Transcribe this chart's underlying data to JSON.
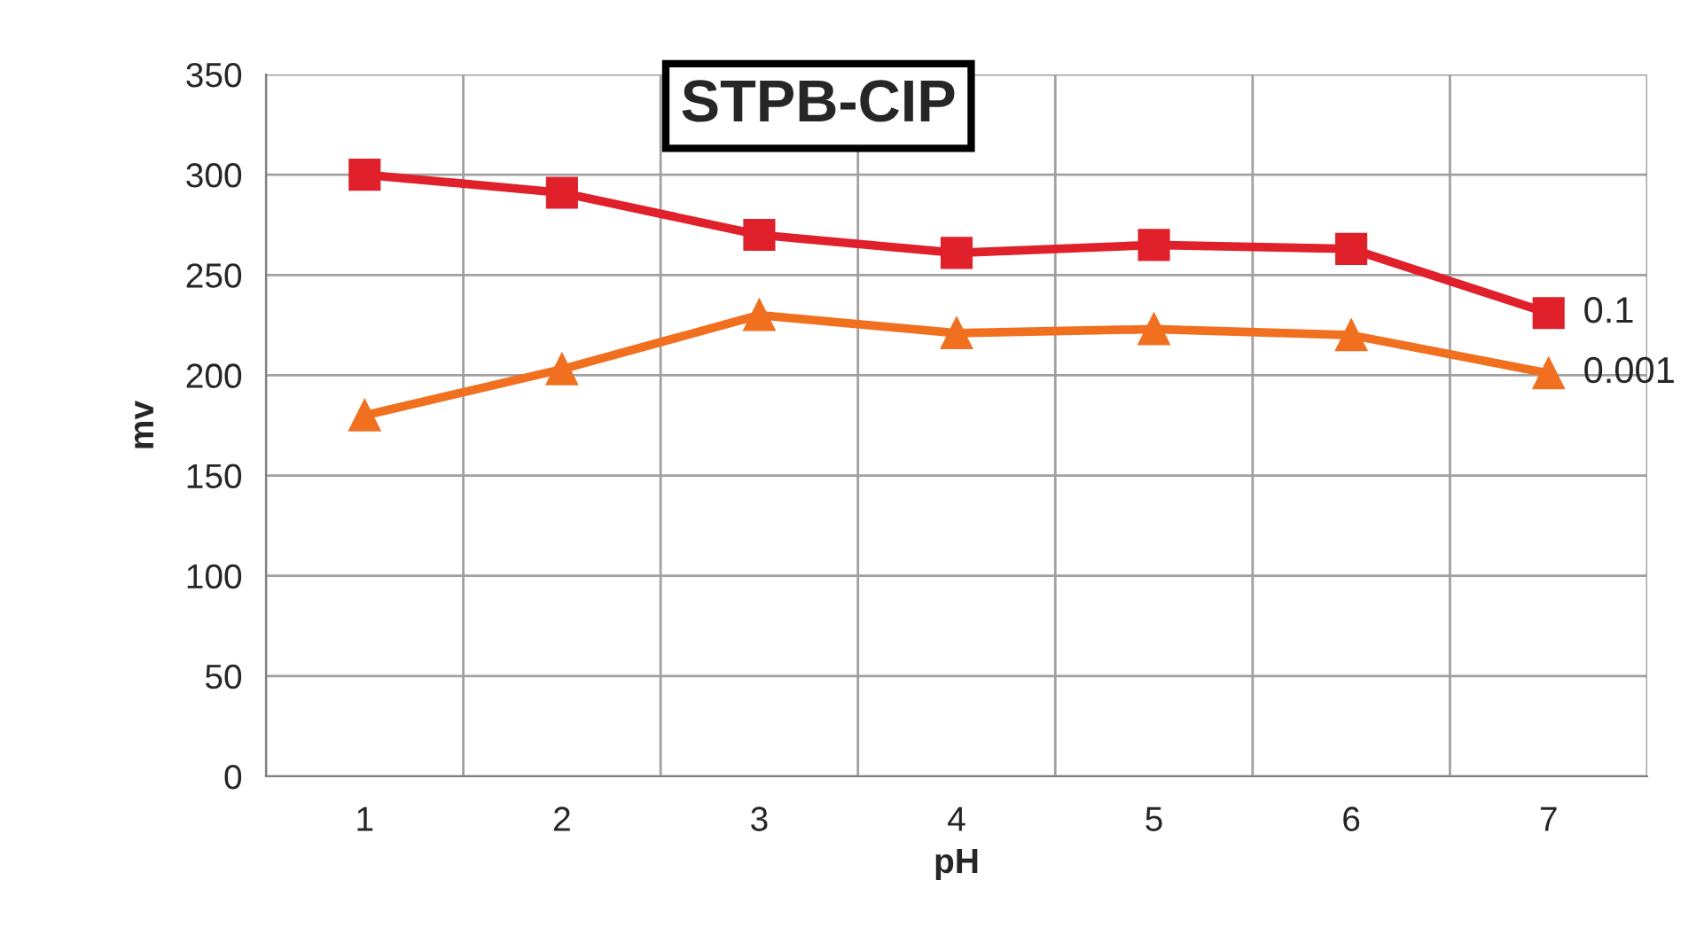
{
  "chart_data": {
    "type": "line",
    "title": "STPB-CIP",
    "xlabel": "pH",
    "ylabel": "mv",
    "categories": [
      "1",
      "2",
      "3",
      "4",
      "5",
      "6",
      "7"
    ],
    "series": [
      {
        "name": "0.1",
        "color": "#e0202a",
        "marker": "square",
        "values": [
          300,
          291,
          270,
          261,
          265,
          263,
          231
        ]
      },
      {
        "name": "0.001",
        "color": "#f07020",
        "marker": "triangle",
        "values": [
          180,
          203,
          230,
          221,
          223,
          220,
          201
        ]
      }
    ],
    "ylim": [
      0,
      350
    ],
    "yticks": [
      0,
      50,
      100,
      150,
      200,
      250,
      300,
      350
    ],
    "grid": true,
    "legend": false
  }
}
